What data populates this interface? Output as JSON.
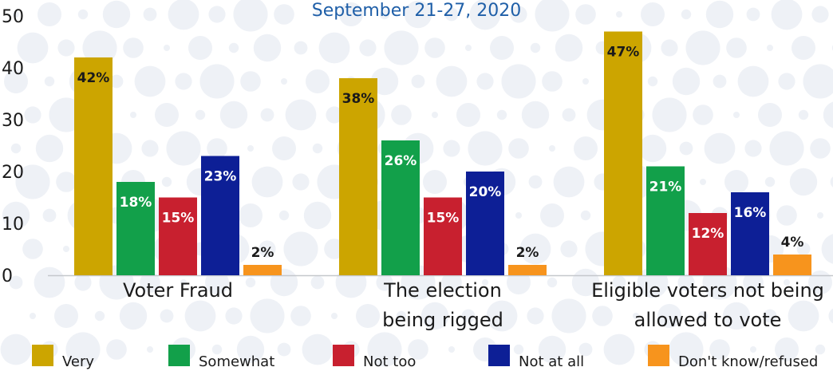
{
  "chart_data": {
    "type": "bar",
    "subtitle": "September 21-27, 2020",
    "categories": [
      [
        "Voter Fraud"
      ],
      [
        "The election",
        "being rigged"
      ],
      [
        "Eligible voters not being",
        "allowed to vote"
      ]
    ],
    "series": [
      {
        "name": "Very",
        "color": "#cca500",
        "values": [
          42,
          38,
          47
        ],
        "labels": [
          "42%",
          "38%",
          "47%"
        ]
      },
      {
        "name": "Somewhat",
        "color": "#12a04a",
        "values": [
          18,
          26,
          21
        ],
        "labels": [
          "18%",
          "26%",
          "21%"
        ]
      },
      {
        "name": "Not too",
        "color": "#c8202f",
        "values": [
          15,
          15,
          12
        ],
        "labels": [
          "15%",
          "15%",
          "12%"
        ]
      },
      {
        "name": "Not at all",
        "color": "#0d1f96",
        "values": [
          23,
          20,
          16
        ],
        "labels": [
          "23%",
          "20%",
          "16%"
        ]
      },
      {
        "name": "Don't know/refused",
        "color": "#f7941d",
        "values": [
          2,
          2,
          4
        ],
        "labels": [
          "2%",
          "2%",
          "4%"
        ]
      }
    ],
    "ylim": [
      0,
      50
    ],
    "yticks": [
      0,
      10,
      20,
      30,
      40,
      50
    ],
    "legend_position": "bottom",
    "grid": false
  }
}
